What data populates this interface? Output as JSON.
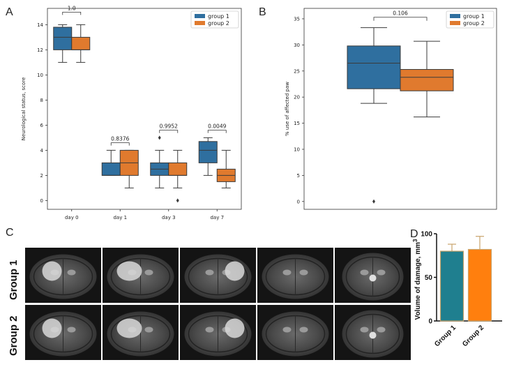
{
  "colors": {
    "group1": "#2f6f9f",
    "group2": "#e07a2e",
    "sig": "#2e8b2e",
    "d_group1": "#1f7f8f",
    "d_group2": "#ff7f0e"
  },
  "panels": {
    "a": "A",
    "b": "B",
    "c": "C",
    "d": "D"
  },
  "mri_row_labels": [
    "Group 1",
    "Group 2"
  ],
  "chart_data": [
    {
      "id": "A",
      "type": "box",
      "ylabel": "Neurological status, score",
      "ylim": [
        -0.7,
        15.3
      ],
      "yticks": [
        0,
        2,
        4,
        6,
        8,
        10,
        12,
        14
      ],
      "categories": [
        "day 0",
        "day 1",
        "day 3",
        "day 7"
      ],
      "legend": [
        "group 1",
        "group 2"
      ],
      "legend_loc": "top-right",
      "series": [
        {
          "name": "group 1",
          "boxes": [
            {
              "whislo": 11,
              "q1": 12,
              "med": 13,
              "q3": 13.8,
              "whishi": 14,
              "fliers": []
            },
            {
              "whislo": 2,
              "q1": 2,
              "med": 2,
              "q3": 3,
              "whishi": 4,
              "fliers": []
            },
            {
              "whislo": 1,
              "q1": 2,
              "med": 2.5,
              "q3": 3,
              "whishi": 4,
              "fliers": [
                5
              ]
            },
            {
              "whislo": 2,
              "q1": 3,
              "med": 4,
              "q3": 4.7,
              "whishi": 5,
              "fliers": []
            }
          ]
        },
        {
          "name": "group 2",
          "boxes": [
            {
              "whislo": 11,
              "q1": 12,
              "med": 12,
              "q3": 13,
              "whishi": 14,
              "fliers": []
            },
            {
              "whislo": 1,
              "q1": 2,
              "med": 3,
              "q3": 4,
              "whishi": 4,
              "fliers": []
            },
            {
              "whislo": 1,
              "q1": 2,
              "med": 2,
              "q3": 3,
              "whishi": 4,
              "fliers": [
                0
              ]
            },
            {
              "whislo": 1,
              "q1": 1.5,
              "med": 2,
              "q3": 2.5,
              "whishi": 4,
              "fliers": []
            }
          ]
        }
      ],
      "annotations": [
        {
          "category": 0,
          "label": "1.0",
          "level": 15,
          "significant": false
        },
        {
          "category": 1,
          "label": "0.8376",
          "level": 4.6,
          "significant": false
        },
        {
          "category": 2,
          "label": "0.9952",
          "level": 5.6,
          "significant": false
        },
        {
          "category": 3,
          "label": "0.0049",
          "level": 5.6,
          "significant": true
        }
      ]
    },
    {
      "id": "B",
      "type": "box",
      "ylabel": "% use of affected paw",
      "ylim": [
        -1.5,
        37
      ],
      "yticks": [
        0,
        5,
        10,
        15,
        20,
        25,
        30,
        35
      ],
      "legend": [
        "group 1",
        "group 2"
      ],
      "legend_loc": "top-right",
      "series": [
        {
          "name": "group 1",
          "box": {
            "whislo": 18.8,
            "q1": 21.6,
            "med": 26.5,
            "q3": 29.8,
            "whishi": 33.3,
            "fliers": [
              0
            ]
          }
        },
        {
          "name": "group 2",
          "box": {
            "whislo": 16.2,
            "q1": 21.2,
            "med": 23.8,
            "q3": 25.3,
            "whishi": 30.7,
            "fliers": []
          }
        }
      ],
      "annotation": {
        "label": "0.106",
        "level": 35.3
      }
    },
    {
      "id": "D",
      "type": "bar",
      "ylabel": "Volume of damage, mm",
      "ylabel_sup": "3",
      "ylim": [
        0,
        100
      ],
      "yticks": [
        0,
        50,
        100
      ],
      "categories": [
        "Group 1",
        "Group 2"
      ],
      "values": [
        80,
        82
      ],
      "errors": [
        8,
        15
      ]
    }
  ]
}
